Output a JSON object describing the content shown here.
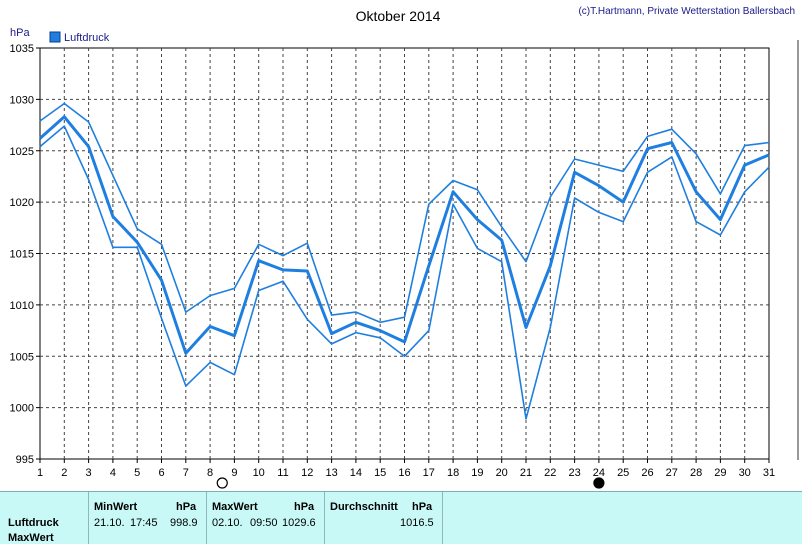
{
  "chart_data": {
    "type": "line",
    "title": "Oktober 2014",
    "credit": "(c)T.Hartmann, Private Wetterstation Ballersbach",
    "ylabel": "hPa",
    "ylim": [
      995,
      1035
    ],
    "yticks": [
      "995",
      "1000",
      "1005",
      "1010",
      "1015",
      "1020",
      "1025",
      "1030",
      "1035"
    ],
    "x": [
      1,
      2,
      3,
      4,
      5,
      6,
      7,
      8,
      9,
      10,
      11,
      12,
      13,
      14,
      15,
      16,
      17,
      18,
      19,
      20,
      21,
      22,
      23,
      24,
      25,
      26,
      27,
      28,
      29,
      30,
      31
    ],
    "legend": "Luftdruck",
    "color": "#1f7fe0",
    "series": [
      {
        "role": "max",
        "values": [
          1027.9,
          1029.6,
          1027.8,
          1022.6,
          1017.4,
          1015.9,
          1009.3,
          1010.9,
          1011.6,
          1015.9,
          1014.8,
          1016.0,
          1009.0,
          1009.3,
          1008.3,
          1008.8,
          1019.8,
          1022.1,
          1021.2,
          1017.6,
          1014.2,
          1020.5,
          1024.2,
          1023.6,
          1023.0,
          1026.4,
          1027.1,
          1024.7,
          1020.8,
          1025.5,
          1025.8
        ]
      },
      {
        "role": "avg",
        "values": [
          1026.2,
          1028.3,
          1025.4,
          1018.6,
          1016.1,
          1012.4,
          1005.3,
          1007.9,
          1007.0,
          1014.3,
          1013.4,
          1013.3,
          1007.2,
          1008.3,
          1007.5,
          1006.4,
          1013.8,
          1021.0,
          1018.3,
          1016.3,
          1007.8,
          1013.8,
          1022.9,
          1021.6,
          1020.0,
          1025.2,
          1025.8,
          1021.0,
          1018.3,
          1023.6,
          1024.6
        ]
      },
      {
        "role": "min",
        "values": [
          1025.4,
          1027.4,
          1022.2,
          1015.6,
          1015.6,
          1008.7,
          1002.1,
          1004.4,
          1003.2,
          1011.4,
          1012.3,
          1008.6,
          1006.2,
          1007.3,
          1006.8,
          1005.0,
          1007.5,
          1019.8,
          1015.5,
          1014.2,
          998.9,
          1007.8,
          1020.4,
          1019.0,
          1018.1,
          1022.9,
          1024.4,
          1018.1,
          1016.8,
          1021.0,
          1023.4
        ]
      }
    ],
    "moon_phases": [
      {
        "day": 8.5,
        "phase": "full"
      },
      {
        "day": 24,
        "phase": "new"
      }
    ],
    "grid": true
  },
  "stats": {
    "row_label": "Luftdruck",
    "row_label2": "MaxWert",
    "min": {
      "header": "MinWert",
      "unit": "hPa",
      "date": "21.10.",
      "time": "17:45",
      "value": "998.9"
    },
    "max": {
      "header": "MaxWert",
      "unit": "hPa",
      "date": "02.10.",
      "time": "09:50",
      "value": "1029.6"
    },
    "avg": {
      "header": "Durchschnitt",
      "unit": "hPa",
      "value": "1016.5"
    }
  }
}
